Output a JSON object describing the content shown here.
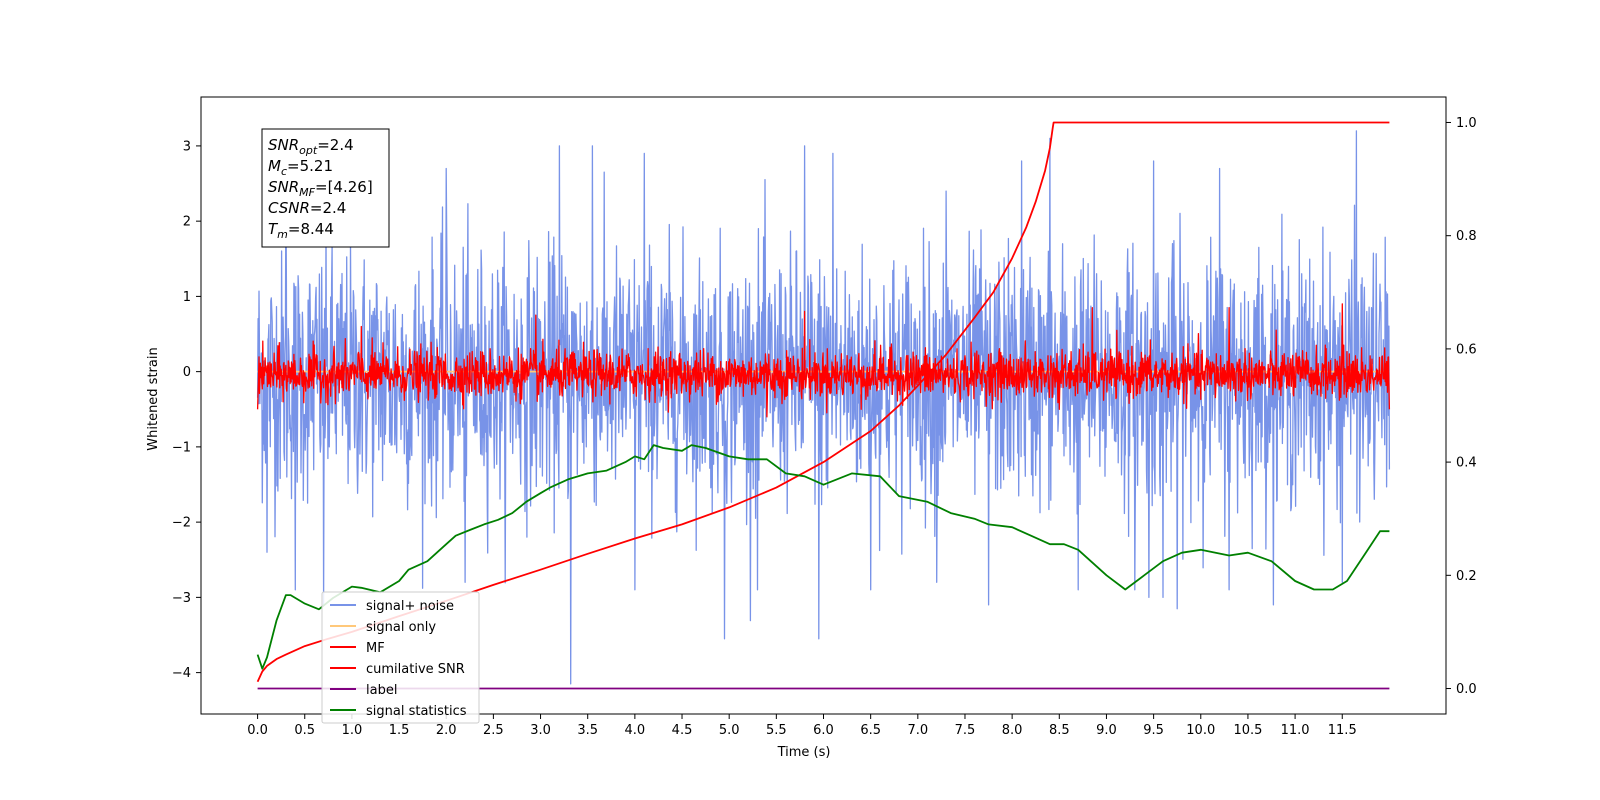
{
  "chart_data": {
    "type": "line",
    "title": "",
    "xlabel": "Time (s)",
    "ylabel": "Whitened strain",
    "xlim": [
      -0.6,
      12.6
    ],
    "ylim": [
      -4.55,
      3.65
    ],
    "y2lim": [
      -0.045,
      1.045
    ],
    "grid": false,
    "legend_position": "lower-left",
    "x_ticks": [
      "0.0",
      "0.5",
      "1.0",
      "1.5",
      "2.0",
      "2.5",
      "3.0",
      "3.5",
      "4.0",
      "4.5",
      "5.0",
      "5.5",
      "6.0",
      "6.5",
      "7.0",
      "7.5",
      "8.0",
      "8.5",
      "9.0",
      "9.5",
      "10.0",
      "10.5",
      "11.0",
      "11.5"
    ],
    "y_ticks": [
      "3",
      "2",
      "1",
      "0",
      "−1",
      "−2",
      "−3",
      "−4"
    ],
    "y2_ticks": [
      "1.0",
      "0.8",
      "0.6",
      "0.4",
      "0.2",
      "0.0"
    ],
    "legend": [
      "signal+ noise",
      "signal only",
      "MF",
      "cumilative SNR",
      "label",
      "signal statistics"
    ],
    "annotation": [
      {
        "base": "SNR",
        "sub": "opt",
        "value": "=2.4"
      },
      {
        "base": "M",
        "sub": "c",
        "value": "=5.21"
      },
      {
        "base": "SNR",
        "sub": "MF",
        "value": "=[4.26]"
      },
      {
        "base": "CSNR",
        "sub": "",
        "value": "=2.4"
      },
      {
        "base": "T",
        "sub": "m",
        "value": "=8.44"
      }
    ],
    "colors": {
      "signal_noise": "#7893e8",
      "signal_only": "#ffc87a",
      "mf": "#ff0000",
      "cumulative_snr": "#ff0000",
      "label": "#800080",
      "signal_statistics": "#008000"
    },
    "series": [
      {
        "name": "signal+ noise",
        "axis": "left",
        "kind": "noise",
        "x_range": [
          0.0,
          12.0
        ],
        "center": -0.1,
        "envelope_low": -2.0,
        "envelope_high": 1.9,
        "peaks": [
          [
            0.3,
            2.5
          ],
          [
            2.0,
            2.7
          ],
          [
            3.2,
            3.0
          ],
          [
            3.55,
            3.0
          ],
          [
            4.1,
            2.9
          ],
          [
            5.8,
            3.0
          ],
          [
            6.1,
            2.9
          ],
          [
            7.3,
            2.4
          ],
          [
            8.1,
            2.8
          ],
          [
            8.4,
            3.1
          ],
          [
            9.5,
            2.8
          ],
          [
            10.2,
            2.7
          ],
          [
            11.65,
            3.2
          ]
        ],
        "dips": [
          [
            0.1,
            -2.4
          ],
          [
            0.4,
            -2.9
          ],
          [
            0.7,
            -3.1
          ],
          [
            2.2,
            -2.8
          ],
          [
            3.32,
            -4.15
          ],
          [
            4.0,
            -2.9
          ],
          [
            4.95,
            -3.55
          ],
          [
            5.3,
            -2.9
          ],
          [
            5.95,
            -3.55
          ],
          [
            6.5,
            -2.9
          ],
          [
            7.2,
            -2.8
          ],
          [
            7.75,
            -3.1
          ],
          [
            8.7,
            -2.9
          ],
          [
            9.3,
            -2.9
          ],
          [
            9.45,
            -3.0
          ],
          [
            9.6,
            -3.0
          ],
          [
            9.75,
            -3.15
          ],
          [
            10.3,
            -2.9
          ],
          [
            11.5,
            -2.8
          ]
        ]
      },
      {
        "name": "signal only",
        "axis": "left",
        "kind": "line",
        "x": [
          0.0,
          12.0
        ],
        "y": [
          0.0,
          0.0
        ]
      },
      {
        "name": "MF",
        "axis": "left",
        "kind": "noise",
        "x_range": [
          0.0,
          12.0
        ],
        "center": -0.05,
        "envelope_low": -0.4,
        "envelope_high": 0.35,
        "peaks": [
          [
            0.0,
            0.8
          ],
          [
            1.1,
            0.6
          ],
          [
            2.95,
            0.75
          ],
          [
            5.8,
            0.8
          ],
          [
            8.85,
            0.85
          ],
          [
            10.3,
            0.85
          ],
          [
            11.5,
            0.9
          ],
          [
            12.0,
            0.8
          ]
        ],
        "dips": [
          [
            0.0,
            -0.5
          ],
          [
            5.4,
            -0.6
          ],
          [
            6.4,
            -0.5
          ],
          [
            8.5,
            -0.5
          ],
          [
            12.0,
            -0.5
          ]
        ]
      },
      {
        "name": "cumilative SNR",
        "axis": "right",
        "kind": "line",
        "x": [
          0.0,
          0.05,
          0.1,
          0.2,
          0.3,
          0.5,
          0.75,
          1.0,
          1.5,
          2.0,
          2.5,
          3.0,
          3.5,
          4.0,
          4.5,
          5.0,
          5.5,
          6.0,
          6.5,
          6.8,
          7.0,
          7.3,
          7.6,
          7.8,
          8.0,
          8.15,
          8.25,
          8.35,
          8.4,
          8.43,
          8.44,
          12.0
        ],
        "y": [
          0.012,
          0.03,
          0.04,
          0.052,
          0.06,
          0.075,
          0.088,
          0.1,
          0.128,
          0.155,
          0.183,
          0.21,
          0.238,
          0.265,
          0.29,
          0.32,
          0.355,
          0.4,
          0.455,
          0.5,
          0.535,
          0.59,
          0.655,
          0.7,
          0.76,
          0.815,
          0.86,
          0.915,
          0.955,
          0.99,
          1.0,
          1.0
        ]
      },
      {
        "name": "label",
        "axis": "right",
        "kind": "line",
        "x": [
          0.0,
          12.0
        ],
        "y": [
          0.0,
          0.0
        ]
      },
      {
        "name": "signal statistics",
        "axis": "right",
        "kind": "line",
        "x": [
          0.0,
          0.05,
          0.1,
          0.2,
          0.3,
          0.35,
          0.5,
          0.65,
          0.8,
          1.0,
          1.1,
          1.3,
          1.5,
          1.6,
          1.8,
          1.9,
          2.0,
          2.1,
          2.25,
          2.4,
          2.55,
          2.7,
          2.85,
          3.0,
          3.1,
          3.3,
          3.5,
          3.7,
          3.9,
          4.0,
          4.1,
          4.2,
          4.3,
          4.5,
          4.6,
          4.75,
          5.0,
          5.2,
          5.4,
          5.6,
          5.8,
          6.0,
          6.3,
          6.6,
          6.8,
          7.1,
          7.35,
          7.6,
          7.75,
          8.0,
          8.2,
          8.4,
          8.55,
          8.7,
          9.0,
          9.2,
          9.4,
          9.6,
          9.8,
          10.0,
          10.3,
          10.5,
          10.75,
          11.0,
          11.2,
          11.4,
          11.55,
          11.75,
          11.9,
          12.0
        ],
        "y": [
          0.06,
          0.035,
          0.055,
          0.12,
          0.165,
          0.165,
          0.15,
          0.14,
          0.16,
          0.18,
          0.178,
          0.17,
          0.19,
          0.21,
          0.225,
          0.24,
          0.255,
          0.27,
          0.28,
          0.29,
          0.298,
          0.31,
          0.33,
          0.345,
          0.355,
          0.37,
          0.38,
          0.385,
          0.4,
          0.41,
          0.405,
          0.43,
          0.425,
          0.42,
          0.43,
          0.425,
          0.41,
          0.405,
          0.405,
          0.38,
          0.375,
          0.36,
          0.38,
          0.375,
          0.34,
          0.33,
          0.31,
          0.3,
          0.29,
          0.285,
          0.27,
          0.255,
          0.255,
          0.245,
          0.2,
          0.175,
          0.2,
          0.225,
          0.24,
          0.245,
          0.235,
          0.24,
          0.225,
          0.19,
          0.175,
          0.175,
          0.19,
          0.24,
          0.278,
          0.278
        ]
      }
    ]
  }
}
